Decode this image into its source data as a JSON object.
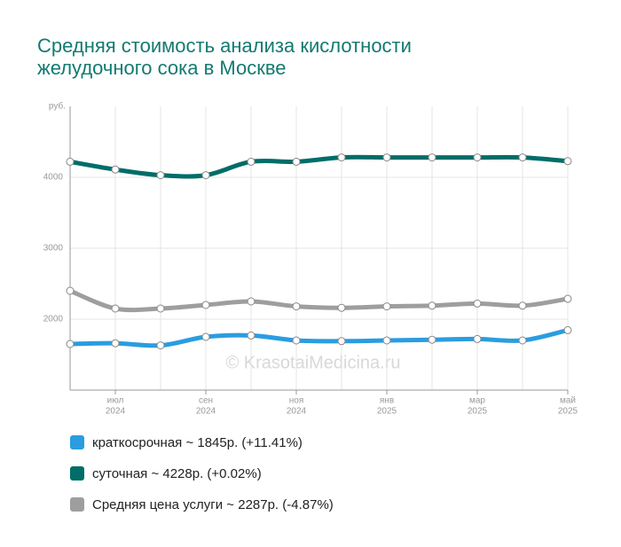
{
  "chart_data": {
    "type": "line",
    "title": [
      "Средняя стоимость анализа кислотности",
      "желудочного сока в Москве"
    ],
    "y_unit": "руб.",
    "watermark": "© KrasotaiMedicina.ru",
    "categories": [
      null,
      {
        "month": "июл",
        "year": "2024"
      },
      null,
      {
        "month": "сен",
        "year": "2024"
      },
      null,
      {
        "month": "ноя",
        "year": "2024"
      },
      null,
      {
        "month": "янв",
        "year": "2025"
      },
      null,
      {
        "month": "мар",
        "year": "2025"
      },
      null,
      {
        "month": "май",
        "year": "2025"
      }
    ],
    "ylim": [
      1000,
      5000
    ],
    "yticks": [
      2000,
      3000,
      4000
    ],
    "grid": true,
    "series": [
      {
        "name": "краткосрочная ~ 1845р. (+11.41%)",
        "color": "#2a9de0",
        "values": [
          1650,
          1660,
          1630,
          1750,
          1770,
          1700,
          1690,
          1700,
          1710,
          1720,
          1700,
          1845
        ]
      },
      {
        "name": "суточная ~ 4228р. (+0.02%)",
        "color": "#006d68",
        "values": [
          4220,
          4110,
          4030,
          4030,
          4220,
          4220,
          4280,
          4280,
          4280,
          4280,
          4280,
          4228
        ]
      },
      {
        "name": "Средняя цена услуги ~ 2287р. (-4.87%)",
        "color": "#9e9e9e",
        "values": [
          2400,
          2150,
          2150,
          2200,
          2250,
          2180,
          2160,
          2180,
          2190,
          2220,
          2190,
          2287
        ]
      }
    ]
  }
}
